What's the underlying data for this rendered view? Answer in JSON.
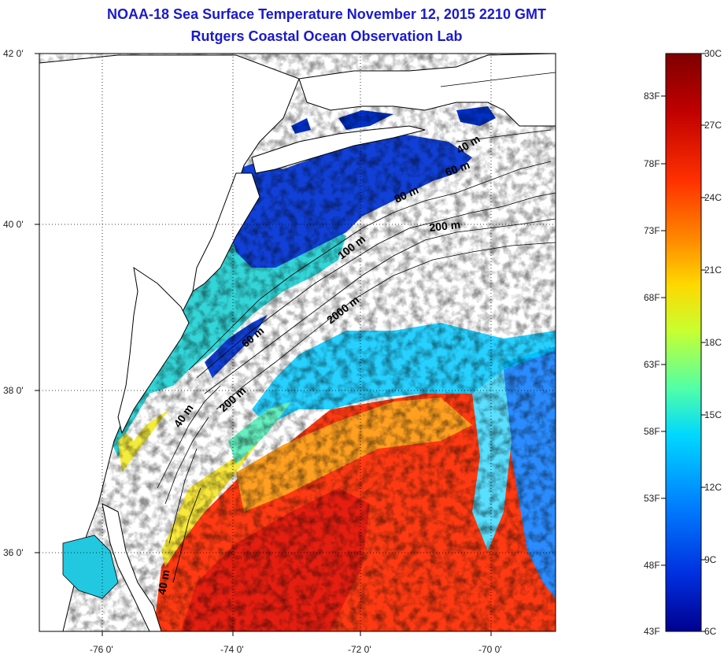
{
  "header": {
    "title_line1": "NOAA-18 Sea Surface Temperature November 12, 2015 2210 GMT",
    "title_line2": "Rutgers Coastal Ocean Observation Lab"
  },
  "map": {
    "lat_labels": [
      "42 0'",
      "40 0'",
      "38 0'",
      "36 0'"
    ],
    "lon_labels": [
      "-76 0'",
      "-74 0'",
      "-72 0'",
      "-70 0'"
    ],
    "contour_labels": [
      "40 m",
      "60 m",
      "80 m",
      "200 m",
      "100 m",
      "2000 m",
      "60 m",
      "200 m",
      "40 m",
      "40 m"
    ]
  },
  "colorbar": {
    "fahrenheit_labels": [
      "83F",
      "78F",
      "73F",
      "68F",
      "63F",
      "58F",
      "53F",
      "48F",
      "43F"
    ],
    "celsius_labels": [
      "30C",
      "27C",
      "24C",
      "21C",
      "18C",
      "15C",
      "12C",
      "9C",
      "6C"
    ],
    "colors": [
      "#7f0000",
      "#c00000",
      "#ff3000",
      "#ff8800",
      "#ffd800",
      "#c8ff30",
      "#50ffa8",
      "#00d8ff",
      "#0080ff",
      "#0030e0",
      "#00008f"
    ]
  },
  "colors": {
    "title": "#1a1acc",
    "land": "#ffffff",
    "coast": "#000000"
  }
}
